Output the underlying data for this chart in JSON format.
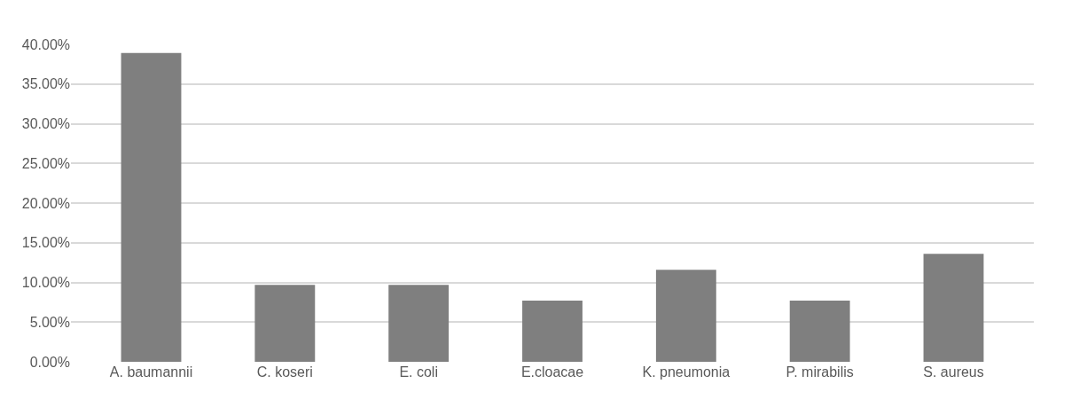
{
  "chart_data": {
    "type": "bar",
    "categories": [
      "A. baumannii",
      "C. koseri",
      "E. coli",
      "E.cloacae",
      "K. pneumonia",
      "P. mirabilis",
      "S. aureus"
    ],
    "values": [
      38.9,
      9.7,
      9.7,
      7.7,
      11.6,
      7.7,
      13.6
    ],
    "color": "#7f7f7f",
    "ylim": [
      0,
      40
    ],
    "yticks": [
      {
        "value": 0,
        "label": "0.00%"
      },
      {
        "value": 5,
        "label": "5.00%"
      },
      {
        "value": 10,
        "label": "10.00%"
      },
      {
        "value": 15,
        "label": "15.00%"
      },
      {
        "value": 20,
        "label": "20.00%"
      },
      {
        "value": 25,
        "label": "25.00%"
      },
      {
        "value": 30,
        "label": "30.00%"
      },
      {
        "value": 35,
        "label": "35.00%"
      },
      {
        "value": 40,
        "label": "40.00%"
      }
    ],
    "grid": "y"
  }
}
